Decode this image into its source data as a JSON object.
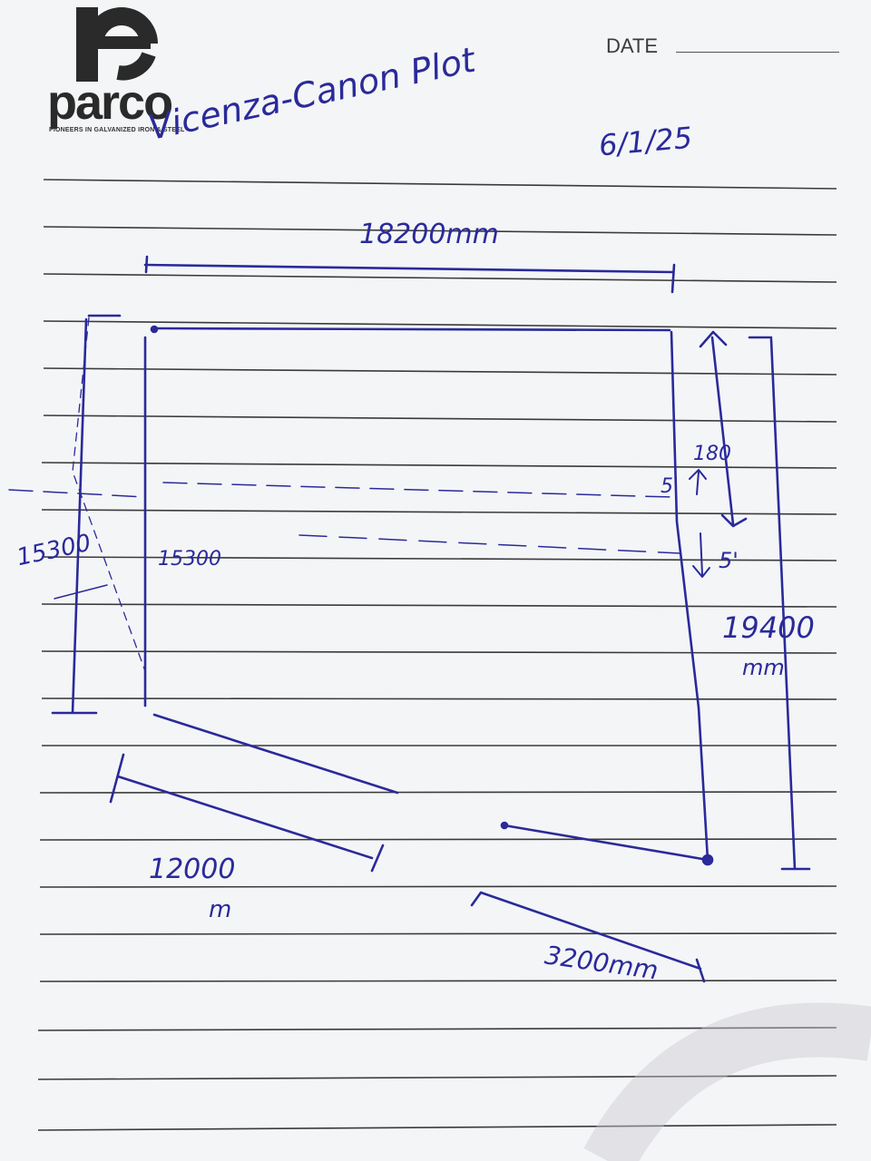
{
  "header": {
    "brand": "parco",
    "tagline": "PIONEERS IN GALVANIZED IRON & STEEL",
    "date_label": "DATE"
  },
  "note": {
    "title": "Vicenza-Canon Plot",
    "date": "6/1/25",
    "dims": {
      "top": "18200mm",
      "left_outer": "15300",
      "left_inner": "15300",
      "right_small": "180",
      "right_gap_upper": "5'",
      "right_gap_lower": "5'",
      "right": "19400",
      "right_unit": "mm",
      "bottom_left": "12000",
      "bottom_left_unit": "m",
      "bottom_right": "3200mm"
    }
  },
  "colors": {
    "ink": "#2a2a9a",
    "paper": "#f4f5f7",
    "rule": "#3a3a3a",
    "logo": "#2a2a2a"
  },
  "icons": {
    "logo": "parco-logo-icon"
  }
}
